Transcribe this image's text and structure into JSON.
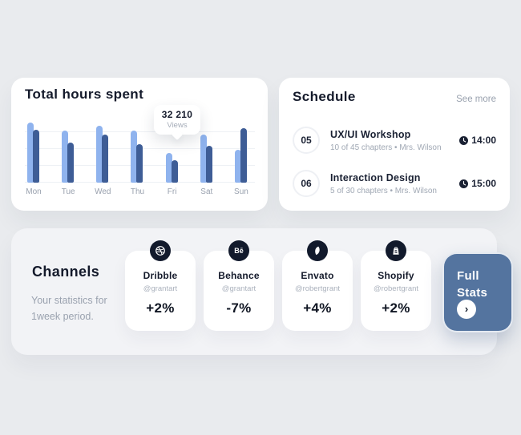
{
  "colors": {
    "background": "#E9EBEE",
    "panel": "#F2F3F6",
    "card": "#FFFFFF",
    "accent_button": "#54749F",
    "icon_circle": "#121A2C",
    "bar_light": "#8FB3EE",
    "bar_dark": "#3E5D96"
  },
  "chart_data": {
    "type": "bar",
    "title": "Total hours spent",
    "categories": [
      "Mon",
      "Tue",
      "Wed",
      "Thu",
      "Fri",
      "Sat",
      "Sun"
    ],
    "series": [
      {
        "name": "light",
        "color": "#8FB3EE",
        "values": [
          75,
          65,
          71,
          65,
          37,
          60,
          41
        ]
      },
      {
        "name": "dark",
        "color": "#3E5D96",
        "values": [
          66,
          50,
          60,
          48,
          28,
          46,
          68
        ]
      }
    ],
    "ylim": [
      0,
      83
    ],
    "grid": true,
    "legend": "none",
    "tooltip": {
      "value": "32 210",
      "label": "Views",
      "target": "Fri"
    }
  },
  "hours_card": {
    "title": "Total hours spent"
  },
  "schedule": {
    "title": "Schedule",
    "see_more": "See more",
    "items": [
      {
        "number": "05",
        "title": "UX/UI Workshop",
        "subtitle": "10 of 45 chapters  •  Mrs. Wilson",
        "time": "14:00"
      },
      {
        "number": "06",
        "title": "Interaction Design",
        "subtitle": "5 of 30 chapters  •  Mrs. Wilson",
        "time": "15:00"
      }
    ]
  },
  "channels": {
    "title": "Channels",
    "subtitle_line1": "Your statistics for",
    "subtitle_line2": "1week  period.",
    "cards": [
      {
        "icon": "dribbble-icon",
        "name": "Dribble",
        "handle": "@grantart",
        "change": "+2%"
      },
      {
        "icon": "behance-icon",
        "name": "Behance",
        "handle": "@grantart",
        "change": "-7%"
      },
      {
        "icon": "envato-icon",
        "name": "Envato",
        "handle": "@robertgrant",
        "change": "+4%"
      },
      {
        "icon": "shopify-icon",
        "name": "Shopify",
        "handle": "@robertgrant",
        "change": "+2%"
      }
    ],
    "full_stats_label": "Full Stats"
  }
}
